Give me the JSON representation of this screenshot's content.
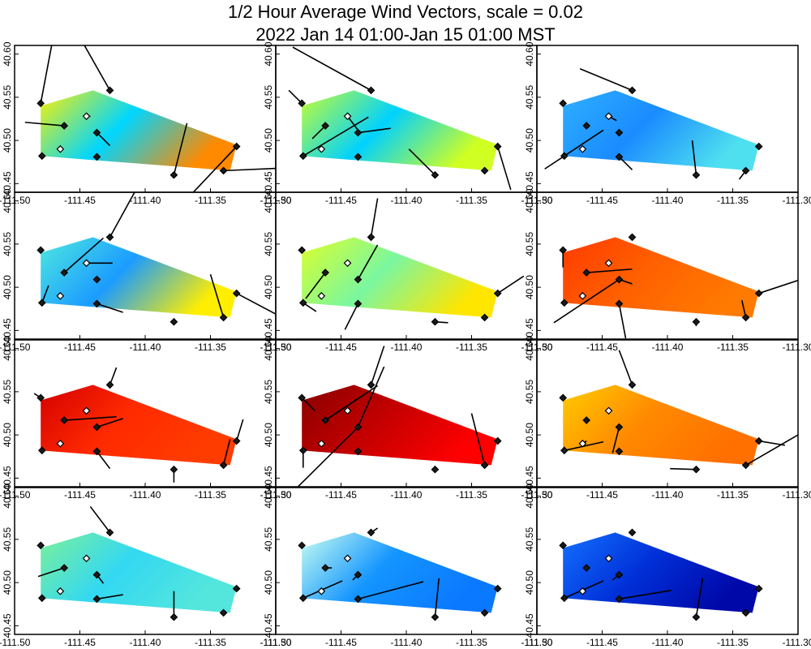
{
  "title_line1": "1/2 Hour Average Wind Vectors, scale =  0.02",
  "title_line2": "2022 Jan 14 01:00-Jan 15 01:00 MST",
  "chart_data": {
    "type": "map-vector-panels",
    "grid": "4x3",
    "x_ticks": [
      -111.5,
      -111.45,
      -111.4,
      -111.35,
      -111.3
    ],
    "x_tick_labels": [
      "-111.50",
      "-111.45",
      "-111.40",
      "-111.35",
      "-111.30"
    ],
    "y_ticks": [
      40.45,
      40.5,
      40.55,
      40.6
    ],
    "y_tick_labels": [
      "40.45",
      "40.50",
      "40.55",
      "40.60"
    ],
    "xlim": [
      -111.5,
      -111.3
    ],
    "ylim": [
      40.44,
      40.61
    ],
    "domain_polygon": [
      [
        -111.48,
        40.54
      ],
      [
        -111.44,
        40.558
      ],
      [
        -111.33,
        40.495
      ],
      [
        -111.335,
        40.465
      ],
      [
        -111.48,
        40.482
      ]
    ],
    "stations": [
      {
        "lon": -111.48,
        "lat": 40.543,
        "hollow": false
      },
      {
        "lon": -111.479,
        "lat": 40.482,
        "hollow": false
      },
      {
        "lon": -111.462,
        "lat": 40.517,
        "hollow": false
      },
      {
        "lon": -111.465,
        "lat": 40.49,
        "hollow": true
      },
      {
        "lon": -111.445,
        "lat": 40.528,
        "hollow": true
      },
      {
        "lon": -111.437,
        "lat": 40.509,
        "hollow": false
      },
      {
        "lon": -111.437,
        "lat": 40.481,
        "hollow": false
      },
      {
        "lon": -111.427,
        "lat": 40.558,
        "hollow": false
      },
      {
        "lon": -111.378,
        "lat": 40.46,
        "hollow": false
      },
      {
        "lon": -111.34,
        "lat": 40.465,
        "hollow": false
      },
      {
        "lon": -111.33,
        "lat": 40.493,
        "hollow": false
      }
    ],
    "panels": [
      {
        "colors": [
          "#fff200",
          "#00d6ff",
          "#ff8a00"
        ],
        "vectors": [
          [
            0,
            0.01,
            0.08
          ],
          [
            2,
            -0.03,
            0.004
          ],
          [
            4,
            0.003,
            0.0
          ],
          [
            5,
            0.01,
            -0.015
          ],
          [
            7,
            -0.03,
            0.08
          ],
          [
            8,
            0.01,
            0.06
          ],
          [
            9,
            0.06,
            0.004
          ],
          [
            10,
            -0.05,
            -0.08
          ]
        ]
      },
      {
        "colors": [
          "#c8ff2e",
          "#00d2ff",
          "#d0ff22"
        ],
        "vectors": [
          [
            0,
            -0.01,
            0.015
          ],
          [
            1,
            0.05,
            0.045
          ],
          [
            2,
            -0.01,
            -0.015
          ],
          [
            4,
            0.01,
            -0.02
          ],
          [
            5,
            0.025,
            0.005
          ],
          [
            7,
            -0.06,
            0.05
          ],
          [
            8,
            -0.02,
            0.03
          ],
          [
            10,
            0.01,
            -0.05
          ]
        ]
      },
      {
        "colors": [
          "#2eafff",
          "#1a8cff",
          "#4fe0f0"
        ],
        "vectors": [
          [
            1,
            -0.015,
            -0.015
          ],
          [
            1,
            0.03,
            0.03
          ],
          [
            4,
            0.006,
            -0.005
          ],
          [
            6,
            0.01,
            -0.015
          ],
          [
            7,
            -0.04,
            0.025
          ],
          [
            8,
            -0.003,
            0.04
          ],
          [
            9,
            -0.005,
            -0.01
          ],
          [
            10,
            0.0,
            0.0
          ]
        ]
      },
      {
        "colors": [
          "#4ee8e0",
          "#1b9cff",
          "#ffee00"
        ],
        "vectors": [
          [
            1,
            0.005,
            0.02
          ],
          [
            2,
            0.03,
            0.04
          ],
          [
            4,
            0.02,
            0.0
          ],
          [
            6,
            0.02,
            -0.01
          ],
          [
            7,
            0.02,
            0.055
          ],
          [
            9,
            -0.01,
            0.05
          ],
          [
            10,
            0.05,
            -0.04
          ]
        ]
      },
      {
        "colors": [
          "#dcff2a",
          "#7af7a0",
          "#ffe600"
        ],
        "vectors": [
          [
            1,
            0.01,
            -0.01
          ],
          [
            2,
            -0.015,
            -0.03
          ],
          [
            5,
            0.015,
            0.04
          ],
          [
            6,
            -0.01,
            -0.03
          ],
          [
            7,
            0.005,
            0.045
          ],
          [
            8,
            0.01,
            -0.001
          ],
          [
            10,
            0.02,
            0.02
          ]
        ]
      },
      {
        "colors": [
          "#ff3a00",
          "#ff6000",
          "#ff7a00"
        ],
        "vectors": [
          [
            0,
            0.0,
            -0.02
          ],
          [
            2,
            0.035,
            0.004
          ],
          [
            5,
            0.01,
            -0.005
          ],
          [
            5,
            -0.05,
            -0.05
          ],
          [
            6,
            0.005,
            -0.04
          ],
          [
            8,
            0.0,
            -0.005
          ],
          [
            9,
            -0.003,
            0.02
          ],
          [
            10,
            0.04,
            0.02
          ]
        ]
      },
      {
        "colors": [
          "#d40000",
          "#ff2a00",
          "#ff3c00"
        ],
        "vectors": [
          [
            0,
            -0.005,
            0.005
          ],
          [
            2,
            0.04,
            0.004
          ],
          [
            5,
            0.02,
            0.01
          ],
          [
            6,
            0.01,
            -0.02
          ],
          [
            7,
            0.005,
            0.02
          ],
          [
            8,
            0.0,
            -0.015
          ],
          [
            9,
            0.005,
            0.03
          ],
          [
            10,
            0.005,
            0.025
          ]
        ]
      },
      {
        "colors": [
          "#8a0000",
          "#c40000",
          "#ff0000"
        ],
        "vectors": [
          [
            0,
            0.01,
            -0.015
          ],
          [
            1,
            0.0,
            -0.02
          ],
          [
            2,
            0.04,
            0.04
          ],
          [
            2,
            0.03,
            0.03
          ],
          [
            5,
            0.02,
            0.07
          ],
          [
            5,
            -0.06,
            -0.09
          ],
          [
            7,
            0.01,
            0.045
          ],
          [
            9,
            -0.01,
            0.06
          ]
        ]
      },
      {
        "colors": [
          "#ffcc00",
          "#ff8a00",
          "#ff7000"
        ],
        "vectors": [
          [
            1,
            0.03,
            0.01
          ],
          [
            1,
            0.0,
            0.0
          ],
          [
            3,
            0.003,
            0.003
          ],
          [
            5,
            -0.005,
            -0.03
          ],
          [
            7,
            -0.01,
            0.04
          ],
          [
            8,
            -0.02,
            0.001
          ],
          [
            9,
            0.04,
            0.035
          ],
          [
            10,
            0.02,
            -0.005
          ]
        ]
      },
      {
        "colors": [
          "#7cf09a",
          "#33d8f2",
          "#54e6dc"
        ],
        "vectors": [
          [
            1,
            0.0,
            0.0
          ],
          [
            2,
            -0.02,
            -0.01
          ],
          [
            5,
            0.005,
            -0.01
          ],
          [
            6,
            0.02,
            0.005
          ],
          [
            7,
            -0.015,
            0.03
          ],
          [
            8,
            0.0,
            0.03
          ],
          [
            9,
            0.0,
            0.0
          ]
        ]
      },
      {
        "colors": [
          "#c8fff0",
          "#1495ff",
          "#0a78ff"
        ],
        "vectors": [
          [
            1,
            0.03,
            0.02
          ],
          [
            2,
            0.005,
            0.0
          ],
          [
            5,
            -0.004,
            -0.006
          ],
          [
            6,
            0.05,
            0.02
          ],
          [
            7,
            0.005,
            0.005
          ],
          [
            8,
            0.003,
            0.045
          ],
          [
            10,
            0.0,
            0.0
          ]
        ]
      },
      {
        "colors": [
          "#1470ff",
          "#0030d8",
          "#0008a8"
        ],
        "vectors": [
          [
            1,
            0.03,
            0.02
          ],
          [
            2,
            0.0,
            0.0
          ],
          [
            5,
            -0.005,
            -0.006
          ],
          [
            6,
            0.04,
            0.01
          ],
          [
            7,
            -0.002,
            0.0
          ],
          [
            8,
            0.005,
            0.045
          ],
          [
            10,
            0.0,
            0.0
          ]
        ]
      }
    ]
  }
}
